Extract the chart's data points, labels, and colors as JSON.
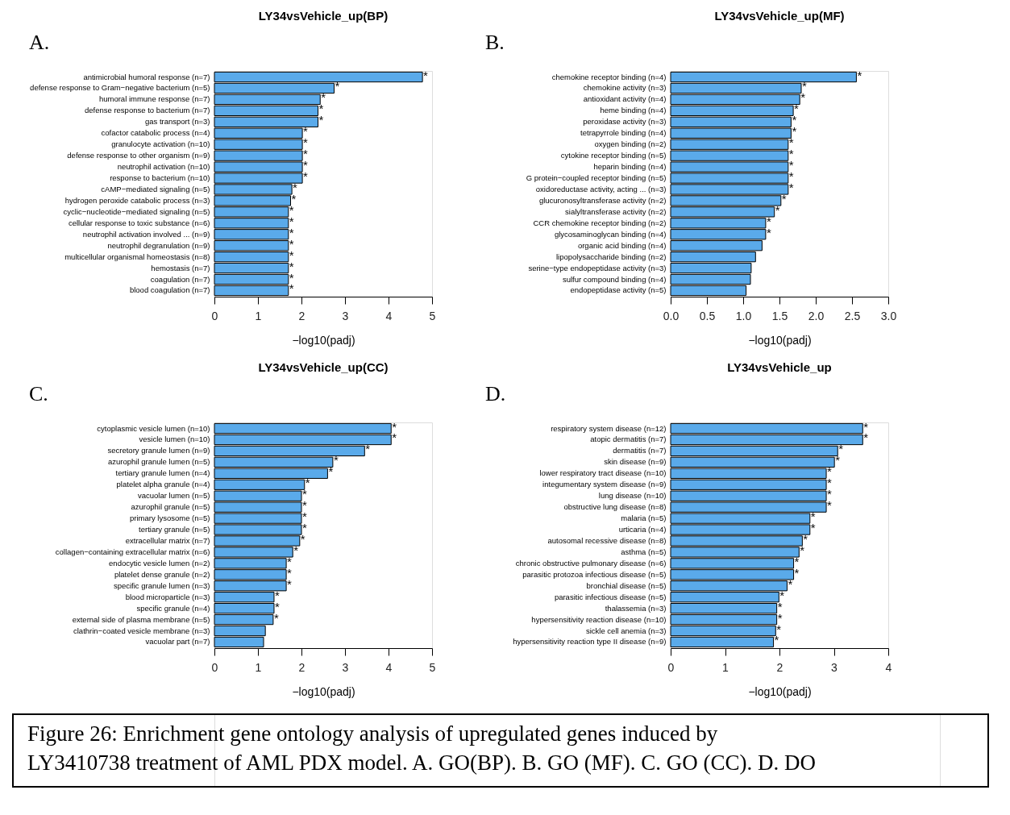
{
  "chart_data": [
    {
      "type": "bar",
      "orientation": "horizontal",
      "title": "LY34vsVehicle_up(BP)",
      "xlabel": "−log10(padj)",
      "annotations": [
        "A."
      ],
      "color": "#5aaaea",
      "categories": [
        "antimicrobial humoral response (n=7)",
        "defense response to Gram−negative bacterium (n=5)",
        "humoral immune response (n=7)",
        "defense response to bacterium (n=7)",
        "gas transport (n=3)",
        "cofactor catabolic process (n=4)",
        "granulocyte activation (n=10)",
        "defense response to other organism (n=9)",
        "neutrophil activation (n=10)",
        "response to bacterium (n=10)",
        "cAMP−mediated signaling (n=5)",
        "hydrogen peroxide catabolic process (n=3)",
        "cyclic−nucleotide−mediated signaling (n=5)",
        "cellular response to toxic substance (n=6)",
        "neutrophil activation involved ... (n=9)",
        "neutrophil degranulation (n=9)",
        "multicellular organismal homeostasis (n=8)",
        "hemostasis (n=7)",
        "coagulation (n=7)",
        "blood coagulation (n=7)"
      ],
      "values": [
        4.78,
        2.75,
        2.43,
        2.38,
        2.38,
        2.02,
        2.02,
        2.02,
        2.02,
        2.02,
        1.78,
        1.75,
        1.7,
        1.7,
        1.7,
        1.7,
        1.7,
        1.7,
        1.7,
        1.7
      ],
      "value_labels": [
        "*",
        "*",
        "*",
        "*",
        "*",
        "*",
        "*",
        "*",
        "*",
        "*",
        "*",
        "*",
        "*",
        "*",
        "*",
        "*",
        "*",
        "*",
        "*",
        "*"
      ],
      "xlim": [
        0,
        5
      ],
      "xticks": [
        0,
        1,
        2,
        3,
        4,
        5
      ]
    },
    {
      "type": "bar",
      "orientation": "horizontal",
      "title": "LY34vsVehicle_up(MF)",
      "xlabel": "−log10(padj)",
      "annotations": [
        "B."
      ],
      "color": "#5aaaea",
      "categories": [
        "chemokine receptor binding (n=4)",
        "chemokine activity (n=3)",
        "antioxidant activity (n=4)",
        "heme binding (n=4)",
        "peroxidase activity (n=3)",
        "tetrapyrrole binding (n=4)",
        "oxygen binding (n=2)",
        "cytokine receptor binding (n=5)",
        "heparin binding (n=4)",
        "G protein−coupled receptor binding (n=5)",
        "oxidoreductase activity, acting ... (n=3)",
        "glucuronosyltransferase activity (n=2)",
        "sialyltransferase activity (n=2)",
        "CCR chemokine receptor binding (n=2)",
        "glycosaminoglycan binding (n=4)",
        "organic acid binding (n=4)",
        "lipopolysaccharide binding (n=2)",
        "serine−type endopeptidase activity (n=3)",
        "sulfur compound binding (n=4)",
        "endopeptidase activity (n=5)"
      ],
      "values": [
        2.56,
        1.8,
        1.78,
        1.69,
        1.66,
        1.66,
        1.62,
        1.62,
        1.62,
        1.62,
        1.62,
        1.52,
        1.43,
        1.31,
        1.31,
        1.26,
        1.17,
        1.11,
        1.1,
        1.04
      ],
      "value_labels": [
        "*",
        "*",
        "*",
        "*",
        "*",
        "*",
        "*",
        "*",
        "*",
        "*",
        "*",
        "*",
        "*",
        "*",
        "*",
        null,
        null,
        null,
        null,
        null
      ],
      "xlim": [
        0,
        3
      ],
      "xticks": [
        {
          "value": 0,
          "label": "0.0"
        },
        {
          "value": 0.5,
          "label": "0.5"
        },
        {
          "value": 1,
          "label": "1.0"
        },
        {
          "value": 1.5,
          "label": "1.5"
        },
        {
          "value": 2,
          "label": "2.0"
        },
        {
          "value": 2.5,
          "label": "2.5"
        },
        {
          "value": 3,
          "label": "3.0"
        }
      ]
    },
    {
      "type": "bar",
      "orientation": "horizontal",
      "title": "LY34vsVehicle_up(CC)",
      "xlabel": "−log10(padj)",
      "annotations": [
        "C."
      ],
      "color": "#5aaaea",
      "categories": [
        "cytoplasmic vesicle lumen (n=10)",
        "vesicle lumen (n=10)",
        "secretory granule lumen (n=9)",
        "azurophil granule lumen (n=5)",
        "tertiary granule lumen (n=4)",
        "platelet alpha granule (n=4)",
        "vacuolar lumen (n=5)",
        "azurophil granule (n=5)",
        "primary lysosome (n=5)",
        "tertiary granule (n=5)",
        "extracellular matrix (n=7)",
        "collagen−containing extracellular matrix (n=6)",
        "endocytic vesicle lumen (n=2)",
        "platelet dense granule (n=2)",
        "specific granule lumen (n=3)",
        "blood microparticle (n=3)",
        "specific granule (n=4)",
        "external side of plasma membrane (n=5)",
        "clathrin−coated vesicle membrane (n=3)",
        "vacuolar part (n=7)"
      ],
      "values": [
        4.06,
        4.06,
        3.45,
        2.72,
        2.6,
        2.07,
        2.0,
        2.0,
        2.0,
        2.0,
        1.96,
        1.8,
        1.65,
        1.65,
        1.65,
        1.37,
        1.37,
        1.35,
        1.17,
        1.13
      ],
      "value_labels": [
        "*",
        "*",
        "*",
        "*",
        "*",
        "*",
        "*",
        "*",
        "*",
        "*",
        "*",
        "*",
        "*",
        "*",
        "*",
        "*",
        "*",
        "*",
        null,
        null
      ],
      "xlim": [
        0,
        5
      ],
      "xticks": [
        0,
        1,
        2,
        3,
        4,
        5
      ]
    },
    {
      "type": "bar",
      "orientation": "horizontal",
      "title": "LY34vsVehicle_up",
      "xlabel": "−log10(padj)",
      "annotations": [
        "D."
      ],
      "color": "#5aaaea",
      "categories": [
        "respiratory system disease (n=12)",
        "atopic dermatitis (n=7)",
        "dermatitis (n=7)",
        "skin disease (n=9)",
        "lower respiratory tract disease (n=10)",
        "integumentary system disease (n=9)",
        "lung disease (n=10)",
        "obstructive lung disease (n=8)",
        "malaria (n=5)",
        "urticaria (n=4)",
        "autosomal recessive disease (n=8)",
        "asthma (n=5)",
        "chronic obstructive pulmonary disease (n=6)",
        "parasitic protozoa infectious disease (n=5)",
        "bronchial disease (n=5)",
        "parasitic infectious disease (n=5)",
        "thalassemia (n=3)",
        "hypersensitivity reaction disease (n=10)",
        "sickle cell anemia (n=3)",
        "hypersensitivity reaction type II disease (n=9)"
      ],
      "values": [
        3.53,
        3.53,
        3.07,
        3.01,
        2.86,
        2.86,
        2.86,
        2.86,
        2.56,
        2.56,
        2.42,
        2.36,
        2.26,
        2.26,
        2.14,
        1.99,
        1.95,
        1.95,
        1.93,
        1.89
      ],
      "value_labels": [
        "*",
        "*",
        "*",
        "*",
        "*",
        "*",
        "*",
        "*",
        "*",
        "*",
        "*",
        "*",
        "*",
        "*",
        "*",
        "*",
        "*",
        "*",
        "*",
        "*"
      ],
      "xlim": [
        0,
        4
      ],
      "xticks": [
        0,
        1,
        2,
        3,
        4
      ]
    },
    {
      "type": "other",
      "annotations": [
        "Figure 26: Enrichment gene ontology analysis of upregulated genes induced by LY3410738 treatment of AML PDX model. A. GO(BP). B. GO (MF). C. GO (CC). D. DO"
      ]
    }
  ]
}
